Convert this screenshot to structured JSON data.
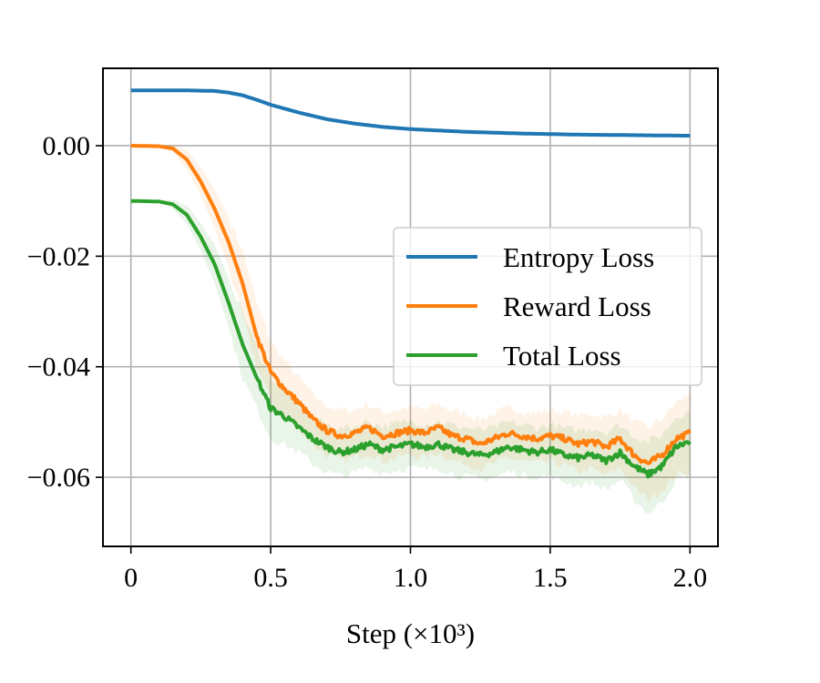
{
  "chart_data": {
    "type": "line",
    "title": "",
    "xlabel": "Step (×10³)",
    "ylabel": "",
    "xlim": [
      -0.1,
      2.1
    ],
    "ylim": [
      -0.0725,
      0.014
    ],
    "xticks": [
      0,
      0.5,
      1.0,
      1.5,
      2.0
    ],
    "xtick_labels": [
      "0",
      "0.5",
      "1.0",
      "1.5",
      "2.0"
    ],
    "yticks": [
      0.0,
      -0.02,
      -0.04,
      -0.06
    ],
    "ytick_labels": [
      "0.00",
      "−0.02",
      "−0.04",
      "−0.06"
    ],
    "grid": true,
    "legend_position": "center-right",
    "series": [
      {
        "name": "Entropy Loss",
        "color": "#1f77b4",
        "x": [
          0,
          0.1,
          0.2,
          0.3,
          0.35,
          0.4,
          0.45,
          0.5,
          0.55,
          0.6,
          0.7,
          0.8,
          0.9,
          1.0,
          1.2,
          1.4,
          1.6,
          1.8,
          2.0
        ],
        "y": [
          0.01,
          0.01,
          0.01,
          0.0099,
          0.0096,
          0.0091,
          0.0083,
          0.0074,
          0.0067,
          0.006,
          0.0048,
          0.004,
          0.0034,
          0.003,
          0.0025,
          0.0022,
          0.002,
          0.0019,
          0.0018
        ]
      },
      {
        "name": "Reward Loss",
        "color": "#ff7f0e",
        "x": [
          0,
          0.1,
          0.15,
          0.2,
          0.25,
          0.3,
          0.35,
          0.4,
          0.45,
          0.5,
          0.55,
          0.6,
          0.65,
          0.7,
          0.75,
          0.8,
          0.85,
          0.9,
          0.95,
          1.0,
          1.05,
          1.1,
          1.15,
          1.2,
          1.25,
          1.3,
          1.35,
          1.4,
          1.45,
          1.5,
          1.55,
          1.6,
          1.65,
          1.7,
          1.75,
          1.8,
          1.85,
          1.9,
          1.95,
          2.0
        ],
        "y": [
          0.0,
          -0.0001,
          -0.0005,
          -0.0025,
          -0.0065,
          -0.0115,
          -0.0175,
          -0.025,
          -0.0345,
          -0.041,
          -0.044,
          -0.0465,
          -0.0495,
          -0.0515,
          -0.0525,
          -0.052,
          -0.051,
          -0.0525,
          -0.052,
          -0.0515,
          -0.052,
          -0.051,
          -0.0525,
          -0.053,
          -0.054,
          -0.053,
          -0.052,
          -0.0525,
          -0.053,
          -0.0525,
          -0.053,
          -0.054,
          -0.0535,
          -0.0545,
          -0.053,
          -0.056,
          -0.0575,
          -0.056,
          -0.053,
          -0.052
        ],
        "band": {
          "upper": [
            0.0,
            0.0,
            0.0003,
            -0.0008,
            -0.004,
            -0.008,
            -0.013,
            -0.019,
            -0.0285,
            -0.0355,
            -0.039,
            -0.042,
            -0.045,
            -0.047,
            -0.048,
            -0.0478,
            -0.0468,
            -0.0482,
            -0.0478,
            -0.0473,
            -0.0478,
            -0.0468,
            -0.048,
            -0.0485,
            -0.0495,
            -0.0485,
            -0.0475,
            -0.048,
            -0.0485,
            -0.0478,
            -0.0482,
            -0.049,
            -0.0485,
            -0.0492,
            -0.0478,
            -0.05,
            -0.051,
            -0.0495,
            -0.0465,
            -0.045
          ],
          "lower": [
            0.0,
            -0.0004,
            -0.0012,
            -0.0042,
            -0.009,
            -0.015,
            -0.022,
            -0.031,
            -0.04,
            -0.046,
            -0.049,
            -0.051,
            -0.054,
            -0.056,
            -0.057,
            -0.0565,
            -0.0555,
            -0.057,
            -0.0565,
            -0.056,
            -0.0565,
            -0.0555,
            -0.057,
            -0.0575,
            -0.0585,
            -0.0575,
            -0.0565,
            -0.057,
            -0.0575,
            -0.0572,
            -0.0578,
            -0.059,
            -0.0585,
            -0.0598,
            -0.0582,
            -0.062,
            -0.064,
            -0.0625,
            -0.0595,
            -0.059
          ]
        }
      },
      {
        "name": "Total Loss",
        "color": "#2ca02c",
        "x": [
          0,
          0.1,
          0.15,
          0.2,
          0.25,
          0.3,
          0.35,
          0.4,
          0.45,
          0.5,
          0.55,
          0.6,
          0.65,
          0.7,
          0.75,
          0.8,
          0.85,
          0.9,
          0.95,
          1.0,
          1.05,
          1.1,
          1.15,
          1.2,
          1.25,
          1.3,
          1.35,
          1.4,
          1.45,
          1.5,
          1.55,
          1.6,
          1.65,
          1.7,
          1.75,
          1.8,
          1.85,
          1.9,
          1.95,
          2.0
        ],
        "y": [
          -0.01,
          -0.0101,
          -0.0106,
          -0.0125,
          -0.0165,
          -0.0215,
          -0.0285,
          -0.036,
          -0.042,
          -0.0475,
          -0.049,
          -0.051,
          -0.053,
          -0.0545,
          -0.0555,
          -0.055,
          -0.054,
          -0.055,
          -0.0545,
          -0.054,
          -0.0545,
          -0.054,
          -0.055,
          -0.0555,
          -0.056,
          -0.0555,
          -0.0545,
          -0.055,
          -0.0555,
          -0.055,
          -0.056,
          -0.0565,
          -0.056,
          -0.057,
          -0.0555,
          -0.058,
          -0.0595,
          -0.058,
          -0.0545,
          -0.0535
        ],
        "band": {
          "upper": [
            -0.01,
            -0.0099,
            -0.0098,
            -0.0108,
            -0.014,
            -0.018,
            -0.024,
            -0.03,
            -0.0365,
            -0.042,
            -0.044,
            -0.0465,
            -0.049,
            -0.0505,
            -0.0512,
            -0.0508,
            -0.0498,
            -0.0508,
            -0.0503,
            -0.0498,
            -0.0503,
            -0.0498,
            -0.0506,
            -0.051,
            -0.0515,
            -0.051,
            -0.05,
            -0.0505,
            -0.051,
            -0.0505,
            -0.0512,
            -0.0515,
            -0.051,
            -0.0518,
            -0.0505,
            -0.0525,
            -0.0535,
            -0.0522,
            -0.049,
            -0.048
          ],
          "lower": [
            -0.01,
            -0.0103,
            -0.0114,
            -0.0142,
            -0.019,
            -0.025,
            -0.033,
            -0.042,
            -0.0475,
            -0.053,
            -0.054,
            -0.0555,
            -0.0575,
            -0.059,
            -0.0598,
            -0.0592,
            -0.0582,
            -0.0592,
            -0.0587,
            -0.0582,
            -0.0587,
            -0.0582,
            -0.0594,
            -0.06,
            -0.0605,
            -0.06,
            -0.059,
            -0.0595,
            -0.06,
            -0.0598,
            -0.0608,
            -0.0615,
            -0.061,
            -0.0622,
            -0.0605,
            -0.064,
            -0.0665,
            -0.0645,
            -0.0605,
            -0.0595
          ]
        }
      }
    ]
  }
}
